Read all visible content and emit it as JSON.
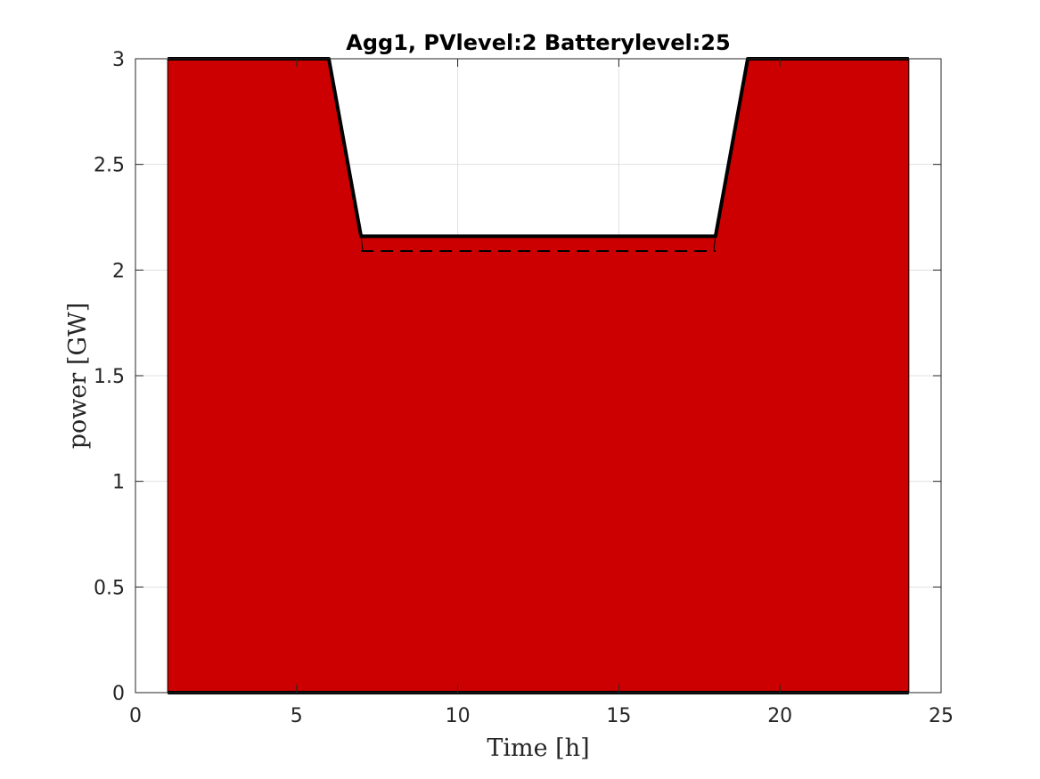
{
  "chart_data": {
    "type": "area",
    "title": "Agg1, PVlevel:2 Batterylevel:25",
    "xlabel": "Time [h]",
    "ylabel": "power [GW]",
    "xlim": [
      0,
      25
    ],
    "ylim": [
      0,
      3
    ],
    "grid": true,
    "x_ticks": [
      "0",
      "5",
      "10",
      "15",
      "20",
      "25"
    ],
    "y_ticks": [
      "0",
      "0.5",
      "1",
      "1.5",
      "2",
      "2.5",
      "3"
    ],
    "colors": {
      "fill": "#cc0000",
      "line": "#000000",
      "grid": "#e0e0e0"
    },
    "series": [
      {
        "style": "area-solid",
        "x": [
          1,
          6,
          7,
          18,
          19,
          24
        ],
        "y": [
          3,
          3,
          2.16,
          2.16,
          3,
          3
        ]
      },
      {
        "style": "dashed",
        "x": [
          7,
          18
        ],
        "y": [
          2.09,
          2.09
        ]
      }
    ]
  }
}
